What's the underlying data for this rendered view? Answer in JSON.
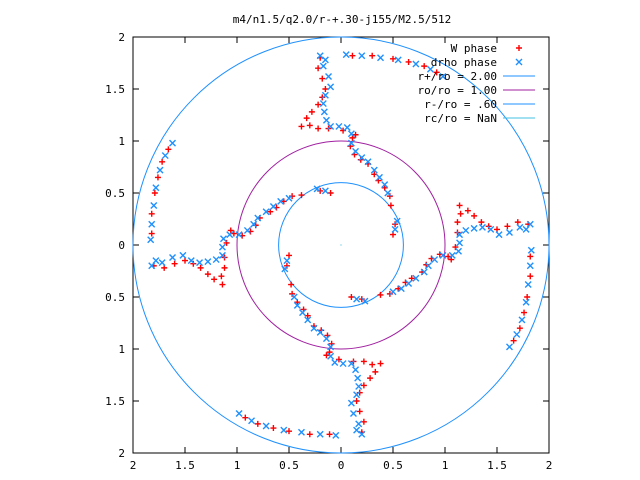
{
  "chart_data": {
    "type": "scatter",
    "title": "m4/n1.5/q2.0/r-+.30-j155/M2.5/512",
    "xlabel": "",
    "ylabel": "",
    "xlim": [
      -2,
      2
    ],
    "ylim": [
      -2,
      2
    ],
    "x_tick_labels": [
      "2",
      "1.5",
      "1",
      "0.5",
      "0",
      "0.5",
      "1",
      "1.5",
      "2"
    ],
    "y_tick_labels": [
      "2",
      "1.5",
      "1",
      "0.5",
      "0",
      "0.5",
      "1",
      "1.5",
      "2"
    ],
    "x_tick_values": [
      -2,
      -1.5,
      -1,
      -0.5,
      0,
      0.5,
      1,
      1.5,
      2
    ],
    "y_tick_values": [
      2,
      1.5,
      1,
      0.5,
      0,
      -0.5,
      -1,
      -1.5,
      -2
    ],
    "grid": false,
    "legend_position": "top-right",
    "series": [
      {
        "name": "W phase",
        "kind": "points",
        "marker": "plus",
        "color": "#ff0000",
        "symmetry": 4,
        "points": [
          [
            0.11,
            1.82
          ],
          [
            0.3,
            1.82
          ],
          [
            0.5,
            1.79
          ],
          [
            0.65,
            1.76
          ],
          [
            0.8,
            1.72
          ],
          [
            0.92,
            1.66
          ],
          [
            -0.2,
            1.8
          ],
          [
            -0.22,
            1.7
          ],
          [
            -0.18,
            1.6
          ],
          [
            -0.15,
            1.5
          ],
          [
            -0.18,
            1.42
          ],
          [
            -0.22,
            1.35
          ],
          [
            -0.28,
            1.28
          ],
          [
            -0.33,
            1.22
          ],
          [
            -0.38,
            1.14
          ],
          [
            -0.3,
            1.15
          ],
          [
            -0.22,
            1.12
          ],
          [
            -0.12,
            1.12
          ],
          [
            0.02,
            1.1
          ],
          [
            0.14,
            1.06
          ],
          [
            0.11,
            1.03
          ],
          [
            0.09,
            0.95
          ],
          [
            0.13,
            0.87
          ],
          [
            0.19,
            0.82
          ],
          [
            0.26,
            0.78
          ],
          [
            0.32,
            0.68
          ],
          [
            0.36,
            0.62
          ],
          [
            0.42,
            0.55
          ],
          [
            0.47,
            0.47
          ],
          [
            0.48,
            0.38
          ],
          [
            -0.2,
            0.52
          ],
          [
            -0.1,
            0.5
          ]
        ]
      },
      {
        "name": "drho phase",
        "kind": "points",
        "marker": "cross",
        "color": "#1e90ff",
        "symmetry": 4,
        "points": [
          [
            -0.2,
            1.82
          ],
          [
            0.05,
            1.83
          ],
          [
            0.2,
            1.82
          ],
          [
            0.38,
            1.8
          ],
          [
            0.55,
            1.78
          ],
          [
            0.72,
            1.74
          ],
          [
            0.86,
            1.69
          ],
          [
            0.98,
            1.62
          ],
          [
            -0.15,
            1.78
          ],
          [
            -0.17,
            1.72
          ],
          [
            -0.12,
            1.62
          ],
          [
            -0.1,
            1.52
          ],
          [
            -0.15,
            1.44
          ],
          [
            -0.17,
            1.36
          ],
          [
            -0.16,
            1.28
          ],
          [
            -0.14,
            1.2
          ],
          [
            -0.1,
            1.14
          ],
          [
            -0.02,
            1.14
          ],
          [
            0.06,
            1.13
          ],
          [
            0.1,
            1.07
          ],
          [
            0.1,
            0.98
          ],
          [
            0.14,
            0.9
          ],
          [
            0.2,
            0.84
          ],
          [
            0.26,
            0.8
          ],
          [
            0.32,
            0.72
          ],
          [
            0.37,
            0.65
          ],
          [
            0.42,
            0.58
          ],
          [
            0.45,
            0.5
          ],
          [
            -0.23,
            0.54
          ],
          [
            -0.15,
            0.52
          ]
        ]
      },
      {
        "name": "r+/ro = 2.00",
        "kind": "circle",
        "radius": 2.0,
        "color": "#1e90ff"
      },
      {
        "name": "ro/ro = 1.00",
        "kind": "circle",
        "radius": 1.0,
        "color": "#a020a0"
      },
      {
        "name": "r-/ro = .60",
        "kind": "circle",
        "radius": 0.6,
        "color": "#1e90ff"
      },
      {
        "name": "rc/ro = NaN",
        "kind": "circle",
        "radius": null,
        "color": "#40c0e0"
      }
    ]
  }
}
